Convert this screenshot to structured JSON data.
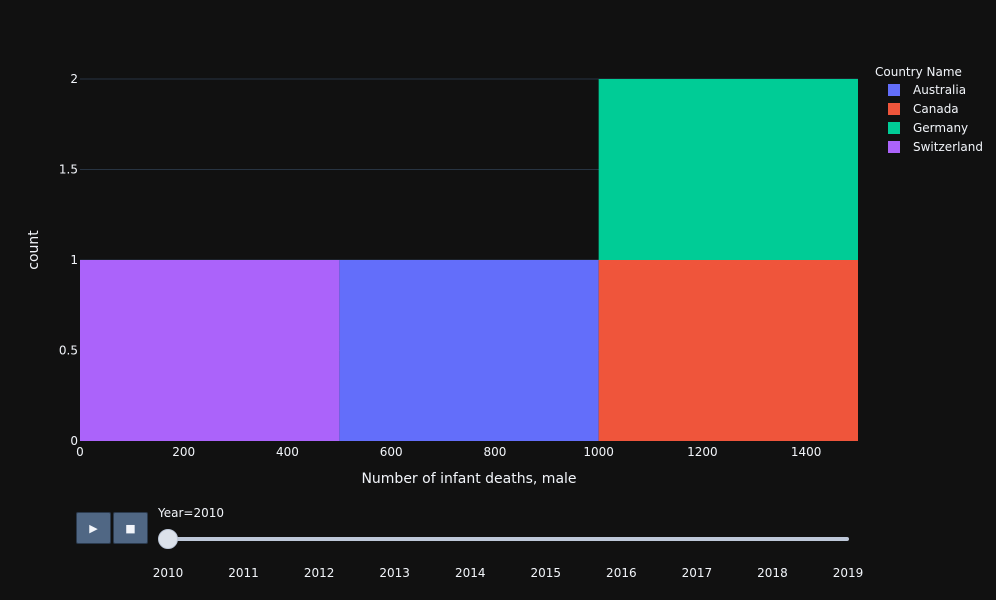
{
  "chart_data": {
    "type": "bar",
    "title": "",
    "xlabel": "Number of infant deaths, male",
    "ylabel": "count",
    "xlim": [
      0,
      1500
    ],
    "ylim": [
      0,
      2
    ],
    "x_ticks": [
      0,
      200,
      400,
      600,
      800,
      1000,
      1200,
      1400
    ],
    "y_ticks": [
      0,
      0.5,
      1,
      1.5,
      2
    ],
    "barmode": "stack",
    "bin_size": 500,
    "legend_title": "Country Name",
    "legend_position": "top-right",
    "grid": true,
    "series": [
      {
        "name": "Australia",
        "color": "#636efa",
        "bins": [
          {
            "x0": 500,
            "x1": 1000,
            "count": 1
          }
        ]
      },
      {
        "name": "Canada",
        "color": "#ef553b",
        "bins": [
          {
            "x0": 1000,
            "x1": 1500,
            "count": 1
          }
        ]
      },
      {
        "name": "Germany",
        "color": "#00cc96",
        "bins": [
          {
            "x0": 1000,
            "x1": 1500,
            "count": 1
          }
        ]
      },
      {
        "name": "Switzerland",
        "color": "#ab63fa",
        "bins": [
          {
            "x0": 0,
            "x1": 500,
            "count": 1
          }
        ]
      }
    ]
  },
  "controls": {
    "play_icon": "play-icon",
    "stop_icon": "stop-icon",
    "play_glyph": "▶",
    "stop_glyph": "■"
  },
  "slider": {
    "current_label": "Year=2010",
    "steps": [
      "2010",
      "2011",
      "2012",
      "2013",
      "2014",
      "2015",
      "2016",
      "2017",
      "2018",
      "2019"
    ],
    "active_index": 0
  }
}
